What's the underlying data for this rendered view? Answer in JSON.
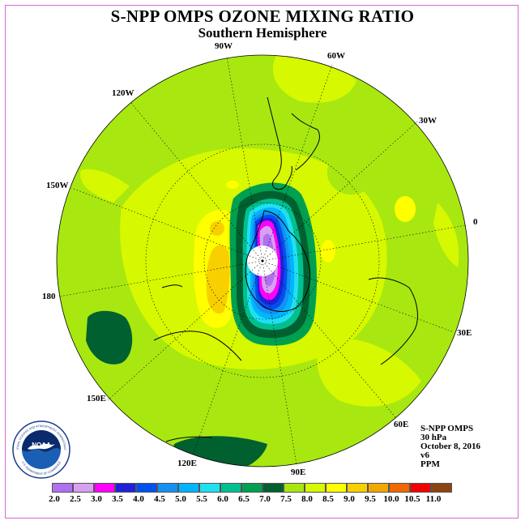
{
  "title": "S-NPP OMPS OZONE MIXING RATIO",
  "subtitle": "Southern Hemisphere",
  "longitude_labels": [
    "90W",
    "60W",
    "30W",
    "0",
    "30E",
    "60E",
    "90E",
    "120E",
    "150E",
    "180",
    "150W",
    "120W"
  ],
  "info": {
    "instrument": "S-NPP OMPS",
    "level": "30 hPa",
    "date": "October 8, 2016",
    "version": "v6",
    "units": "PPM"
  },
  "colorbar": {
    "ticks": [
      "2.0",
      "2.5",
      "3.0",
      "3.5",
      "4.0",
      "4.5",
      "5.0",
      "5.5",
      "6.0",
      "6.5",
      "7.0",
      "7.5",
      "8.0",
      "8.5",
      "9.0",
      "9.5",
      "10.0",
      "10.5",
      "11.0"
    ],
    "colors": [
      "#b070f0",
      "#d7a0f0",
      "#ff00ff",
      "#2020d8",
      "#0050f0",
      "#1590f0",
      "#00b4ff",
      "#20e0f0",
      "#00c090",
      "#00a050",
      "#006030",
      "#a8e810",
      "#d6f800",
      "#ffff00",
      "#f8d000",
      "#f0a800",
      "#f06800",
      "#f00000",
      "#8b4513"
    ]
  },
  "logo": {
    "text": "NOAA",
    "ring_text": "NATIONAL OCEANIC AND ATMOSPHERIC ADMINISTRATION",
    "ring_text_bottom": "U.S. DEPARTMENT OF COMMERCE"
  }
}
